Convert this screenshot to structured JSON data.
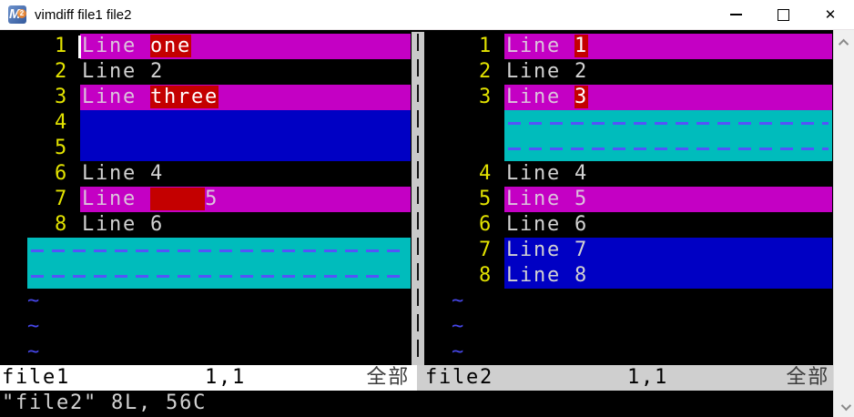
{
  "window": {
    "title": "vimdiff file1 file2",
    "icon_letter": "M",
    "icon_badge": "2"
  },
  "colors": {
    "titlebar-bg": "#ffffff",
    "magenta": "#c400c4",
    "red": "#c40000",
    "blue": "#0000c4",
    "cyan": "#00bcbc",
    "dash": "#5454f8",
    "linenr": "#e2e200",
    "fg": "#d2d2d2",
    "fg-change": "#dcc2dc",
    "tilde": "#4646e8",
    "sep": "#c9c9c9",
    "status-active": "#ffffff",
    "status-inactive": "#cfcfcf",
    "scrollbar-bg": "#f0f0f0"
  },
  "tilde_char": "~",
  "left_pane": {
    "rows": [
      {
        "num": "1",
        "bg": "change",
        "cursor": true,
        "segments": [
          {
            "t": "Line ",
            "hl": "base"
          },
          {
            "t": "one",
            "hl": "red"
          }
        ]
      },
      {
        "num": "2",
        "bg": "normal",
        "segments": [
          {
            "t": "Line 2",
            "hl": "base"
          }
        ]
      },
      {
        "num": "3",
        "bg": "change",
        "segments": [
          {
            "t": "Line ",
            "hl": "base"
          },
          {
            "t": "three",
            "hl": "red"
          }
        ]
      },
      {
        "num": "4",
        "bg": "add",
        "segments": []
      },
      {
        "num": "5",
        "bg": "add",
        "segments": []
      },
      {
        "num": "6",
        "bg": "normal",
        "segments": [
          {
            "t": "Line 4",
            "hl": "base"
          }
        ]
      },
      {
        "num": "7",
        "bg": "change",
        "segments": [
          {
            "t": "Line ",
            "hl": "base"
          },
          {
            "t": "    ",
            "hl": "red"
          },
          {
            "t": "5",
            "hl": "base"
          }
        ]
      },
      {
        "num": "8",
        "bg": "normal",
        "segments": [
          {
            "t": "Line 6",
            "hl": "base"
          }
        ]
      },
      {
        "type": "filler"
      },
      {
        "type": "filler"
      },
      {
        "type": "tilde"
      },
      {
        "type": "tilde"
      },
      {
        "type": "tilde"
      }
    ]
  },
  "right_pane": {
    "rows": [
      {
        "num": "1",
        "bg": "change",
        "segments": [
          {
            "t": "Line ",
            "hl": "base"
          },
          {
            "t": "1",
            "hl": "red"
          }
        ]
      },
      {
        "num": "2",
        "bg": "normal",
        "segments": [
          {
            "t": "Line 2",
            "hl": "base"
          }
        ]
      },
      {
        "num": "3",
        "bg": "change",
        "segments": [
          {
            "t": "Line ",
            "hl": "base"
          },
          {
            "t": "3",
            "hl": "red"
          }
        ]
      },
      {
        "type": "filler"
      },
      {
        "type": "filler"
      },
      {
        "num": "4",
        "bg": "normal",
        "segments": [
          {
            "t": "Line 4",
            "hl": "base"
          }
        ]
      },
      {
        "num": "5",
        "bg": "change",
        "segments": [
          {
            "t": "Line 5",
            "hl": "base"
          }
        ]
      },
      {
        "num": "6",
        "bg": "normal",
        "segments": [
          {
            "t": "Line 6",
            "hl": "base"
          }
        ]
      },
      {
        "num": "7",
        "bg": "add",
        "segments": [
          {
            "t": "Line 7",
            "hl": "base"
          }
        ]
      },
      {
        "num": "8",
        "bg": "add",
        "segments": [
          {
            "t": "Line 8",
            "hl": "base"
          }
        ]
      },
      {
        "type": "tilde"
      },
      {
        "type": "tilde"
      },
      {
        "type": "tilde"
      }
    ]
  },
  "status_left": {
    "file": "file1",
    "position": "1,1",
    "scroll": "全部"
  },
  "status_right": {
    "file": "file2",
    "position": "1,1",
    "scroll": "全部"
  },
  "cmdline": "\"file2\" 8L, 56C"
}
